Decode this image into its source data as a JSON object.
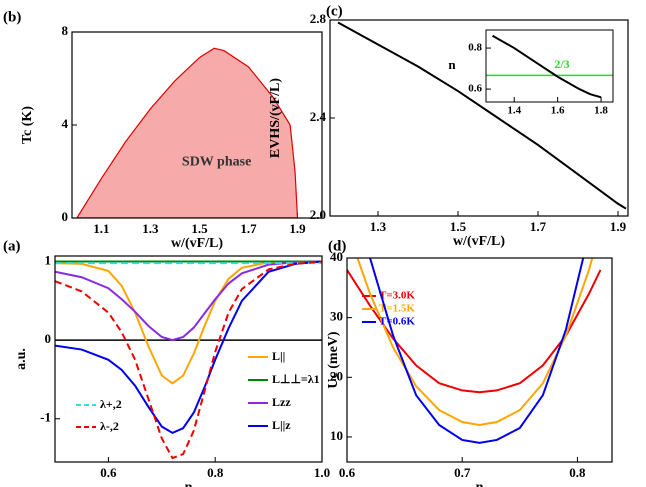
{
  "chart_data": [
    {
      "type": "area",
      "label": "(b)",
      "xlabel": "w/(vF/L)",
      "ylabel": "Tc (K)",
      "annotation": "SDW phase",
      "x": [
        1.0,
        1.1,
        1.2,
        1.3,
        1.4,
        1.5,
        1.56,
        1.6,
        1.7,
        1.8,
        1.87,
        1.89,
        1.9
      ],
      "values": [
        0,
        1.7,
        3.3,
        4.7,
        5.9,
        6.9,
        7.3,
        7.2,
        6.5,
        5.2,
        4.0,
        2.0,
        0
      ],
      "color": "#f7aaaa",
      "edgecolor": "#e00000",
      "xlim": [
        0.98,
        2.0
      ],
      "ylim": [
        0,
        8
      ],
      "xticks": [
        1.1,
        1.3,
        1.5,
        1.7,
        1.9
      ],
      "yticks": [
        0,
        4,
        8
      ]
    },
    {
      "type": "line",
      "label": "(c)",
      "xlabel": "w/(vF/L)",
      "ylabel": "EVHS/(vF/L)",
      "x": [
        1.2,
        1.3,
        1.4,
        1.5,
        1.6,
        1.7,
        1.8,
        1.9,
        1.92
      ],
      "series": [
        {
          "color": "#000000",
          "values": [
            2.79,
            2.7,
            2.61,
            2.51,
            2.4,
            2.29,
            2.17,
            2.05,
            2.03
          ]
        }
      ],
      "xlim": [
        1.18,
        1.925
      ],
      "ylim": [
        2.0,
        2.8
      ],
      "xticks": [
        1.3,
        1.5,
        1.7,
        1.9
      ],
      "yticks": [
        {
          "value": 2,
          "label": "2.0"
        },
        2.4,
        2.8
      ],
      "inset": {
        "type": "line",
        "ylabel": "n",
        "x": [
          1.3,
          1.4,
          1.5,
          1.6,
          1.7,
          1.75,
          1.8
        ],
        "values": [
          0.86,
          0.8,
          0.73,
          0.66,
          0.6,
          0.575,
          0.56
        ],
        "color": "#000000",
        "reference": {
          "value": 0.667,
          "label": "2/3",
          "color": "#22dd22"
        },
        "xlim": [
          1.27,
          1.855
        ],
        "ylim": [
          0.537,
          0.888
        ],
        "xticks": [
          1.4,
          1.6,
          1.8
        ],
        "yticks": [
          0.6,
          0.8
        ]
      }
    },
    {
      "type": "line",
      "label": "(a)",
      "xlabel": "n",
      "ylabel": "a.u.",
      "x": [
        0.5,
        0.55,
        0.6,
        0.625,
        0.65,
        0.675,
        0.7,
        0.72,
        0.74,
        0.76,
        0.78,
        0.8,
        0.825,
        0.85,
        0.9,
        0.95,
        1.0
      ],
      "series": [
        {
          "name": "L||",
          "color": "#ffa500",
          "dash": false,
          "values": [
            0.98,
            0.97,
            0.88,
            0.69,
            0.35,
            -0.08,
            -0.45,
            -0.55,
            -0.45,
            -0.17,
            0.18,
            0.5,
            0.78,
            0.92,
            0.99,
            1.0,
            1.0
          ]
        },
        {
          "name": "L⊥⊥=λ1",
          "color": "#008800",
          "dash": false,
          "values": [
            1.0,
            1.0,
            1.0,
            1.0,
            1.0,
            1.0,
            1.0,
            1.0,
            1.0,
            1.0,
            1.0,
            1.0,
            1.0,
            1.0,
            1.0,
            1.0,
            1.0
          ]
        },
        {
          "name": "Lzz",
          "color": "#8a2be2",
          "dash": false,
          "values": [
            0.87,
            0.8,
            0.66,
            0.52,
            0.36,
            0.18,
            0.04,
            0.0,
            0.04,
            0.16,
            0.34,
            0.52,
            0.72,
            0.85,
            0.96,
            0.99,
            1.0
          ]
        },
        {
          "name": "L||z",
          "color": "#0000ee",
          "dash": false,
          "values": [
            -0.07,
            -0.12,
            -0.25,
            -0.38,
            -0.58,
            -0.85,
            -1.1,
            -1.18,
            -1.12,
            -0.92,
            -0.6,
            -0.25,
            0.15,
            0.5,
            0.87,
            0.97,
            1.0
          ]
        },
        {
          "name": "λ+,2",
          "color": "#33dddd",
          "dash": true,
          "values": [
            0.98,
            0.98,
            0.98,
            0.98,
            0.98,
            0.98,
            0.98,
            0.98,
            0.98,
            0.98,
            0.98,
            0.98,
            0.98,
            0.98,
            0.98,
            0.98,
            0.98
          ]
        },
        {
          "name": "λ-,2",
          "color": "#ee0000",
          "dash": true,
          "values": [
            0.75,
            0.62,
            0.35,
            0.1,
            -0.25,
            -0.75,
            -1.25,
            -1.5,
            -1.45,
            -1.15,
            -0.65,
            -0.15,
            0.35,
            0.65,
            0.9,
            0.97,
            1.0
          ]
        }
      ],
      "xlim": [
        0.5,
        1.0
      ],
      "ylim": [
        -1.55,
        1.07
      ],
      "xticks": [
        0.6,
        0.8,
        {
          "value": 1,
          "label": "1.0"
        }
      ],
      "yticks": [
        -1,
        0,
        1
      ]
    },
    {
      "type": "line",
      "label": "(d)",
      "xlabel": "n",
      "ylabel": "Uc (meV)",
      "x": [
        0.6,
        0.62,
        0.64,
        0.66,
        0.68,
        0.7,
        0.715,
        0.73,
        0.75,
        0.77,
        0.79,
        0.81,
        0.82
      ],
      "series": [
        {
          "name": "T=3.0K",
          "color": "#ee0000",
          "values": [
            38,
            32,
            26.5,
            22,
            19,
            17.8,
            17.5,
            17.8,
            19,
            22,
            27,
            34,
            38
          ]
        },
        {
          "name": "T=1.5K",
          "color": "#ffa500",
          "values": [
            45,
            34,
            25,
            18.5,
            14.5,
            12.5,
            12,
            12.5,
            14.5,
            19,
            27,
            38,
            45
          ]
        },
        {
          "name": "T=0.6K",
          "color": "#0000ee",
          "values": [
            55,
            40,
            27,
            17,
            12,
            9.5,
            9,
            9.5,
            11.5,
            17,
            28,
            44,
            55
          ]
        }
      ],
      "xlim": [
        0.6,
        0.83
      ],
      "ylim": [
        5.8,
        40
      ],
      "xticks": [
        0.6,
        0.7,
        0.8
      ],
      "yticks": [
        10,
        20,
        30,
        40
      ]
    }
  ]
}
